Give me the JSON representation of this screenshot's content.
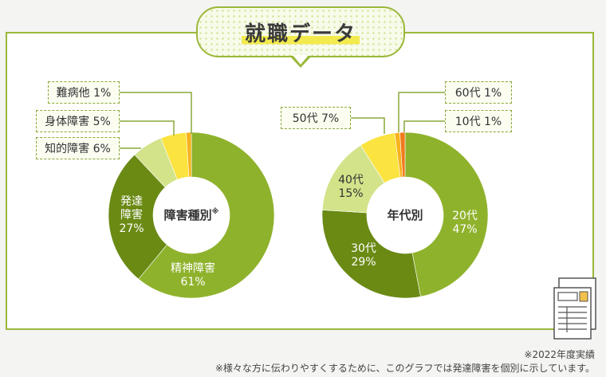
{
  "title": "就職データ",
  "chart_data": [
    {
      "type": "pie",
      "center_label": "障害種別※",
      "slices": [
        {
          "label": "精神障害",
          "value": 61,
          "value_text": "61%",
          "color": "#8fb22c"
        },
        {
          "label": "発達障害",
          "value": 27,
          "value_text": "27%",
          "color": "#6a8a14"
        },
        {
          "label": "知的障害",
          "value": 6,
          "value_text": "6%",
          "color": "#d2e38a"
        },
        {
          "label": "身体障害",
          "value": 5,
          "value_text": "5%",
          "color": "#fbe340"
        },
        {
          "label": "難病他",
          "value": 1,
          "value_text": "1%",
          "color": "#f7b21c"
        }
      ],
      "callouts": [
        "難病他 1%",
        "身体障害 5%",
        "知的障害 6%"
      ]
    },
    {
      "type": "pie",
      "center_label": "年代別",
      "slices": [
        {
          "label": "20代",
          "value": 47,
          "value_text": "47%",
          "color": "#8fb22c"
        },
        {
          "label": "30代",
          "value": 29,
          "value_text": "29%",
          "color": "#6a8a14"
        },
        {
          "label": "40代",
          "value": 15,
          "value_text": "15%",
          "color": "#d2e38a"
        },
        {
          "label": "50代",
          "value": 7,
          "value_text": "7%",
          "color": "#fbe340"
        },
        {
          "label": "60代",
          "value": 1,
          "value_text": "1%",
          "color": "#f7b21c"
        },
        {
          "label": "10代",
          "value": 1,
          "value_text": "1%",
          "color": "#f07a1c"
        }
      ],
      "callouts": [
        "60代 1%",
        "50代 7%",
        "10代 1%"
      ]
    }
  ],
  "notes": {
    "year": "※2022年度実績",
    "explanation": "※様々な方に伝わりやすくするために、このグラフでは発達障害を個別に示しています。"
  },
  "icons": {
    "document": "document-icon"
  },
  "colors": {
    "accent": "#9ab83a",
    "highlight": "#f3ea4e"
  }
}
